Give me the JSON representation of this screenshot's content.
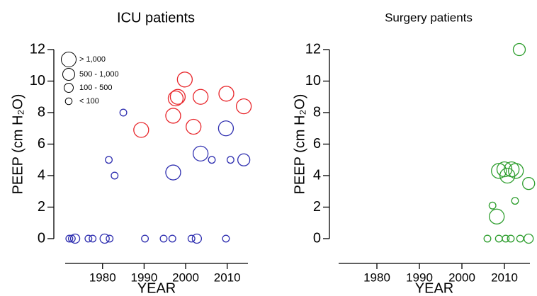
{
  "chart_data": [
    {
      "type": "scatter",
      "title": "ICU patients",
      "xlabel": "YEAR",
      "ylabel": "PEEP (cm H₂O)",
      "xlim": [
        1971,
        2015
      ],
      "xticks": [
        1980,
        1990,
        2000,
        2010
      ],
      "ylim": [
        -0.5,
        12.5
      ],
      "yticks": [
        0,
        2,
        4,
        6,
        8,
        10,
        12
      ],
      "legend": "upper left",
      "series": [
        {
          "name": "> 1,000",
          "x": [
            1989.3,
            1997,
            1997.6,
            1998.1,
            1999.8,
            2001.9,
            2003.6,
            2009.8,
            2014,
            1997,
            2003.6,
            2009.7
          ],
          "values": [
            6.9,
            7.8,
            8.9,
            9.0,
            10.1,
            7.1,
            9.0,
            9.2,
            8.4,
            4.2,
            5.4,
            7.0
          ],
          "colors": [
            "#e8262b",
            "#e8262b",
            "#e8262b",
            "#e8262b",
            "#e8262b",
            "#e8262b",
            "#e8262b",
            "#e8262b",
            "#e8262b",
            "#2f2fb0",
            "#2f2fb0",
            "#2f2fb0"
          ]
        },
        {
          "name": "500 - 1,000",
          "x": [
            2014
          ],
          "values": [
            5
          ],
          "colors": [
            "#2f2fb0"
          ]
        },
        {
          "name": "100 - 500",
          "x": [
            1973.4,
            1980.5,
            2002.7
          ],
          "values": [
            0,
            0,
            0
          ],
          "colors": [
            "#2f2fb0",
            "#2f2fb0",
            "#2f2fb0"
          ]
        },
        {
          "name": "< 100",
          "x": [
            1972,
            1972.6,
            1976.6,
            1977.6,
            1981.7,
            1990.2,
            1994.7,
            1996.8,
            2001.4,
            2009.7,
            1981.5,
            1982.9,
            1985,
            2006.3,
            2010.8
          ],
          "values": [
            0,
            0,
            0,
            0,
            0,
            0,
            0,
            0,
            0,
            0,
            5,
            4,
            8,
            5,
            5
          ],
          "colors": [
            "#2f2fb0",
            "#2f2fb0",
            "#2f2fb0",
            "#2f2fb0",
            "#2f2fb0",
            "#2f2fb0",
            "#2f2fb0",
            "#2f2fb0",
            "#2f2fb0",
            "#2f2fb0",
            "#2f2fb0",
            "#2f2fb0",
            "#2f2fb0",
            "#2f2fb0",
            "#2f2fb0"
          ]
        }
      ]
    },
    {
      "type": "scatter",
      "title": "Surgery patients",
      "xlabel": "YEAR",
      "ylabel": "PEEP (cm H₂O)",
      "xlim": [
        1971,
        2016
      ],
      "xticks": [
        1980,
        1990,
        2000,
        2010
      ],
      "ylim": [
        -0.5,
        12.5
      ],
      "yticks": [
        0,
        2,
        4,
        6,
        8,
        10,
        12
      ],
      "series": [
        {
          "x": [
            2008.2,
            2008.7,
            2010,
            2010.7,
            2011.7,
            2012.7
          ],
          "values": [
            1.4,
            4.3,
            4.4,
            4.0,
            4.4,
            4.3
          ],
          "colors": [
            "#2e9e2e",
            "#2e9e2e",
            "#2e9e2e",
            "#2e9e2e",
            "#2e9e2e",
            "#2e9e2e"
          ]
        },
        {
          "x": [
            2013.5,
            2015.7
          ],
          "values": [
            12,
            3.5
          ],
          "colors": [
            "#2e9e2e",
            "#2e9e2e"
          ]
        },
        {
          "x": [
            2015.7
          ],
          "values": [
            0
          ],
          "colors": [
            "#2e9e2e"
          ]
        },
        {
          "x": [
            2006,
            2008.7,
            2010.3,
            2011.5,
            2013.7,
            2007.2,
            2012.5
          ],
          "values": [
            0,
            0,
            0,
            0,
            0,
            2.1,
            2.4
          ],
          "colors": [
            "#2e9e2e",
            "#2e9e2e",
            "#2e9e2e",
            "#2e9e2e",
            "#2e9e2e",
            "#2e9e2e",
            "#2e9e2e"
          ]
        }
      ]
    }
  ]
}
